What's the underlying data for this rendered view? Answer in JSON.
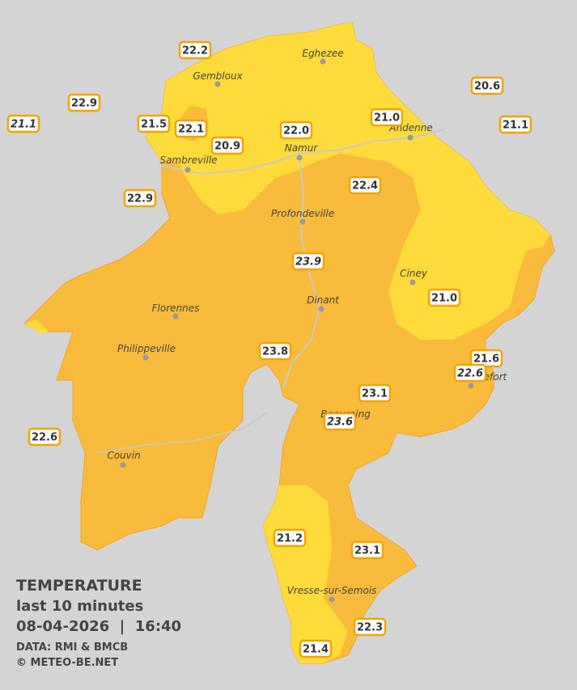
{
  "legend": {
    "title": "TEMPERATURE",
    "subtitle": "last 10 minutes",
    "timestamp": "08-04-2026  |  16:40",
    "source": "DATA: RMI & BMCB",
    "copyright": "© METEO-BE.NET"
  },
  "cities": [
    "Eghezee",
    "Gembloux",
    "Andenne",
    "Namur",
    "Sambreville",
    "Profondeville",
    "Ciney",
    "Dinant",
    "Florennes",
    "Philippeville",
    "Beauraing",
    "Rochefort",
    "Couvin",
    "Vresse-sur-Semois"
  ],
  "stations": [
    "22.2",
    "22.9",
    "21.1",
    "21.5",
    "22.1",
    "20.9",
    "22.0",
    "21.0",
    "20.6",
    "21.1",
    "22.9",
    "22.4",
    "23.9",
    "21.0",
    "23.8",
    "21.6",
    "22.6",
    "23.1",
    "23.6",
    "22.6",
    "21.2",
    "23.1",
    "22.3",
    "21.4"
  ]
}
